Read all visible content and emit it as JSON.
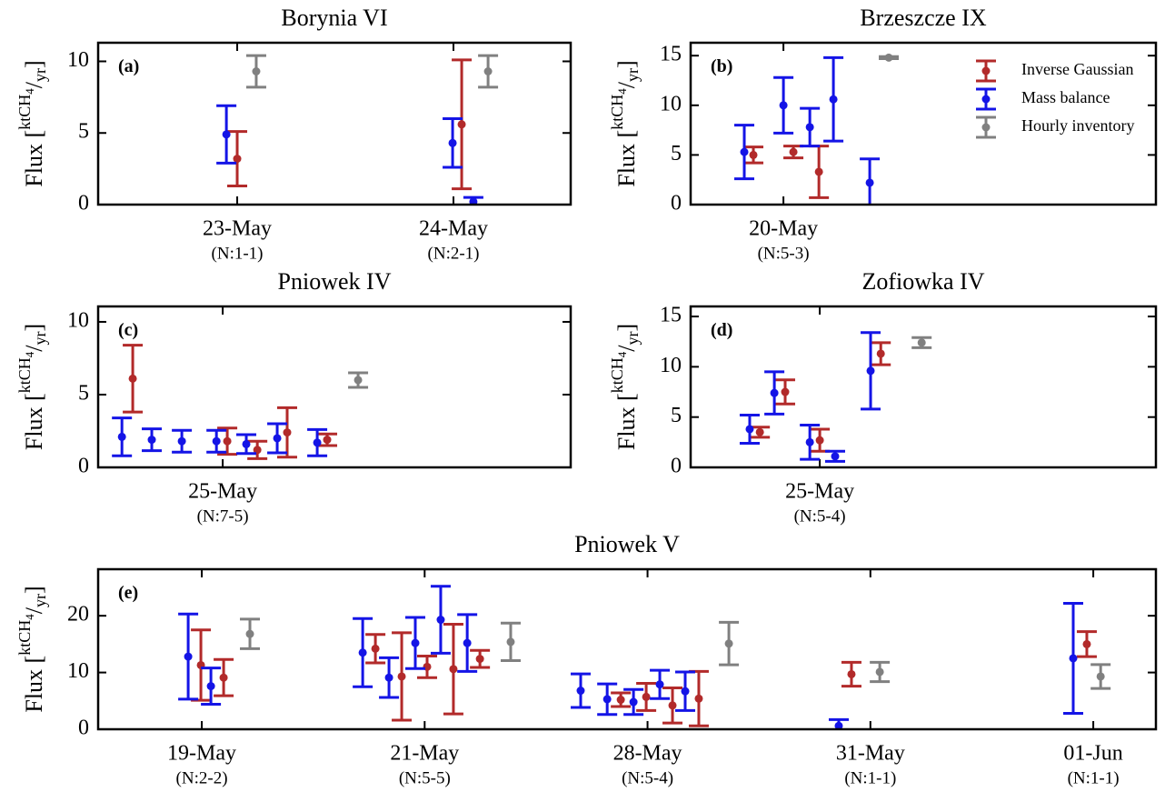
{
  "chart_data": [
    {
      "type": "errorbar",
      "title": "Borynia VI",
      "panel_label": "(a)",
      "ylabel": [
        "Flux [",
        "ktCH",
        "4",
        "/",
        "yr",
        "]"
      ],
      "xlim": [
        0.357,
        2.542
      ],
      "xticks": [
        {
          "value": 1,
          "label": "23-May"
        },
        {
          "value": 2,
          "label": "24-May"
        }
      ],
      "xtick_notes": [
        "(N:1-1)",
        "(N:2-1)"
      ],
      "ylim": [
        0,
        11.3
      ],
      "yticks": [
        0,
        5,
        10
      ],
      "series": [
        {
          "color": "#b22a2a",
          "x": [
            1.0,
            2.038
          ],
          "values": [
            3.2,
            5.6
          ],
          "errors": [
            1.9,
            4.5
          ]
        },
        {
          "color": "#1414e6",
          "x": [
            0.95,
            1.996,
            2.092
          ],
          "values": [
            4.9,
            4.3,
            0.2
          ],
          "errors": [
            2.0,
            1.7,
            0.3
          ]
        },
        {
          "color": "#808080",
          "x": [
            1.088,
            2.16
          ],
          "values": [
            9.3,
            9.3
          ],
          "errors": [
            1.1,
            1.1
          ]
        }
      ]
    },
    {
      "type": "errorbar",
      "title": "Brzeszcze IX",
      "panel_label": "(b)",
      "ylabel": [
        "Flux [",
        "ktCH",
        "4",
        "/",
        "yr",
        "]"
      ],
      "xlim": [
        0.571,
        2.722
      ],
      "xticks": [
        {
          "value": 1,
          "label": "20-May"
        }
      ],
      "xtick_notes": [
        "(N:5-3)"
      ],
      "ylim": [
        0,
        16.3
      ],
      "yticks": [
        0,
        5,
        10,
        15
      ],
      "legend": "upper right",
      "series": [
        {
          "name": "Inverse Gaussian",
          "color": "#b22a2a",
          "x": [
            0.861,
            1.046,
            1.164
          ],
          "values": [
            5.0,
            5.3,
            3.3
          ],
          "errors": [
            0.8,
            0.6,
            2.6
          ]
        },
        {
          "name": "Mass balance",
          "color": "#1414e6",
          "x": [
            0.819,
            1.0,
            1.122,
            1.231,
            1.399
          ],
          "values": [
            5.3,
            10.0,
            7.8,
            10.6,
            2.2
          ],
          "errors": [
            2.7,
            2.8,
            1.9,
            4.2,
            2.4
          ]
        },
        {
          "name": "Hourly inventory",
          "color": "#808080",
          "x": [
            1.487
          ],
          "values": [
            14.8
          ],
          "errors": [
            0.1
          ]
        }
      ]
    },
    {
      "type": "errorbar",
      "title": "Pniowek IV",
      "panel_label": "(c)",
      "ylabel": [
        "Flux [",
        "ktCH",
        "4",
        "/",
        "yr",
        "]"
      ],
      "xlim": [
        0.424,
        2.609
      ],
      "xticks": [
        {
          "value": 1,
          "label": "25-May"
        }
      ],
      "xtick_notes": [
        "(N:7-5)"
      ],
      "ylim": [
        0,
        11.06
      ],
      "yticks": [
        0,
        5,
        10
      ],
      "series": [
        {
          "color": "#b22a2a",
          "x": [
            0.584,
            1.021,
            1.16,
            1.298,
            1.483
          ],
          "values": [
            6.1,
            1.8,
            1.2,
            2.4,
            1.9
          ],
          "errors": [
            2.3,
            0.9,
            0.6,
            1.7,
            0.4
          ]
        },
        {
          "color": "#1414e6",
          "x": [
            0.534,
            0.672,
            0.811,
            0.971,
            1.109,
            1.252,
            1.437
          ],
          "values": [
            2.1,
            1.9,
            1.8,
            1.8,
            1.6,
            2.0,
            1.7
          ],
          "errors": [
            1.3,
            0.75,
            0.75,
            0.75,
            0.65,
            1.0,
            0.9
          ]
        },
        {
          "color": "#808080",
          "x": [
            1.626
          ],
          "values": [
            6.0
          ],
          "errors": [
            0.5
          ]
        }
      ]
    },
    {
      "type": "errorbar",
      "title": "Zofiowka IV",
      "panel_label": "(d)",
      "ylabel": [
        "Flux [",
        "ktCH",
        "4",
        "/",
        "yr",
        "]"
      ],
      "xlim": [
        0.403,
        2.554
      ],
      "xticks": [
        {
          "value": 1,
          "label": "25-May"
        }
      ],
      "xtick_notes": [
        "(N:5-4)"
      ],
      "ylim": [
        0,
        16
      ],
      "yticks": [
        0,
        5,
        10,
        15
      ],
      "series": [
        {
          "color": "#b22a2a",
          "x": [
            0.723,
            0.84,
            1.0,
            1.282
          ],
          "values": [
            3.5,
            7.5,
            2.7,
            11.3
          ],
          "errors": [
            0.5,
            1.2,
            1.1,
            1.1
          ]
        },
        {
          "color": "#1414e6",
          "x": [
            0.676,
            0.79,
            0.954,
            1.071,
            1.235
          ],
          "values": [
            3.8,
            7.4,
            2.5,
            1.1,
            9.6
          ],
          "errors": [
            1.4,
            2.1,
            1.7,
            0.5,
            3.8
          ]
        },
        {
          "color": "#808080",
          "x": [
            1.471
          ],
          "values": [
            12.4
          ],
          "errors": [
            0.5
          ]
        }
      ]
    },
    {
      "type": "errorbar",
      "title": "Pniowek V",
      "panel_label": "(e)",
      "ylabel": [
        "Flux [",
        "ktCH",
        "4",
        "/",
        "yr",
        "]"
      ],
      "xlim": [
        0.535,
        5.281
      ],
      "xticks": [
        {
          "value": 1,
          "label": "19-May"
        },
        {
          "value": 2,
          "label": "21-May"
        },
        {
          "value": 3,
          "label": "28-May"
        },
        {
          "value": 4,
          "label": "31-May"
        },
        {
          "value": 5,
          "label": "01-Jun"
        }
      ],
      "xtick_notes": [
        "(N:2-2)",
        "(N:5-5)",
        "(N:5-4)",
        "(N:1-1)",
        "(N:1-1)"
      ],
      "ylim": [
        0,
        28.2
      ],
      "yticks": [
        0,
        10,
        20
      ],
      "series": [
        {
          "color": "#b22a2a",
          "x": [
            0.996,
            1.098,
            1.779,
            1.897,
            2.011,
            2.129,
            2.248,
            2.88,
            2.994,
            3.112,
            3.23,
            3.915,
            4.971
          ],
          "values": [
            11.3,
            9.1,
            14.2,
            9.3,
            11.0,
            10.6,
            12.4,
            5.2,
            5.7,
            4.2,
            5.4,
            9.7,
            15.0
          ],
          "errors": [
            6.2,
            3.2,
            2.5,
            7.7,
            1.9,
            7.9,
            1.5,
            1.2,
            2.4,
            3.1,
            4.8,
            2.1,
            2.2
          ]
        },
        {
          "color": "#1414e6",
          "x": [
            0.939,
            1.041,
            1.722,
            1.84,
            1.958,
            2.072,
            2.191,
            2.7,
            2.819,
            2.937,
            3.055,
            3.169,
            3.858,
            4.91
          ],
          "values": [
            12.8,
            7.6,
            13.5,
            9.1,
            15.2,
            19.3,
            15.2,
            6.8,
            5.3,
            4.8,
            7.9,
            6.7,
            0.6,
            12.5
          ],
          "errors": [
            7.5,
            3.2,
            6.0,
            3.5,
            4.5,
            5.9,
            5.0,
            2.95,
            2.7,
            2.2,
            2.5,
            3.4,
            1.1,
            9.7
          ]
        },
        {
          "color": "#808080",
          "x": [
            1.216,
            2.386,
            3.365,
            4.042,
            5.033
          ],
          "values": [
            16.8,
            15.4,
            15.1,
            10.1,
            9.3
          ],
          "errors": [
            2.6,
            3.3,
            3.75,
            1.7,
            2.1
          ]
        }
      ]
    }
  ]
}
